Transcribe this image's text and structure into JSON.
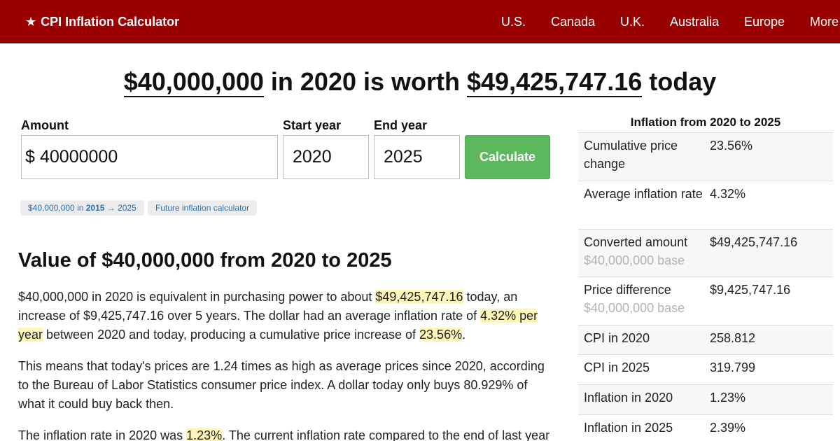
{
  "header": {
    "brand": "CPI Inflation Calculator",
    "nav": [
      "U.S.",
      "Canada",
      "U.K.",
      "Australia",
      "Europe",
      "More"
    ]
  },
  "headline": {
    "amount": "$40,000,000",
    "mid": "in 2020 is worth",
    "result": "$49,425,747.16",
    "tail": "today"
  },
  "form": {
    "amount_label": "Amount",
    "currency": "$",
    "amount_value": "40000000",
    "start_label": "Start year",
    "start_value": "2020",
    "end_label": "End year",
    "end_value": "2025",
    "calculate": "Calculate"
  },
  "pills": {
    "link1_prefix": "$40,000,000 in",
    "link1_year": "2015",
    "link1_suffix": "→ 2025",
    "link2": "Future inflation calculator"
  },
  "section": {
    "title": "Value of $40,000,000 from 2020 to 2025"
  },
  "paragraphs": {
    "p1": {
      "a": "$40,000,000 in 2020 is equivalent in purchasing power to about ",
      "h1": "$49,425,747.16",
      "b": " today, an increase of $9,425,747.16 over 5 years. The dollar had an average inflation rate of ",
      "h2": "4.32% per year",
      "c": " between 2020 and today, producing a cumulative price increase of ",
      "h3": "23.56%",
      "d": "."
    },
    "p2": "This means that today's prices are 1.24 times as high as average prices since 2020, according to the Bureau of Labor Statistics consumer price index. A dollar today only buys 80.929% of what it could buy back then.",
    "p3": {
      "a": "The inflation rate in 2020 was ",
      "h1": "1.23%",
      "b": ". The current inflation rate compared to the end of last year"
    }
  },
  "sidebar": {
    "title": "Inflation from 2020 to 2025",
    "rows": [
      {
        "label": "Cumulative price change",
        "value": "23.56%"
      },
      {
        "label": "Average inflation rate",
        "value": "4.32%"
      },
      {
        "label": "Converted amount",
        "sub": "$40,000,000 base",
        "value": "$49,425,747.16"
      },
      {
        "label": "Price difference",
        "sub": "$40,000,000 base",
        "value": "$9,425,747.16"
      },
      {
        "label": "CPI in 2020",
        "value": "258.812"
      },
      {
        "label": "CPI in 2025",
        "value": "319.799"
      },
      {
        "label": "Inflation in 2020",
        "value": "1.23%"
      },
      {
        "label": "Inflation in 2025",
        "value": "2.39%"
      }
    ]
  }
}
